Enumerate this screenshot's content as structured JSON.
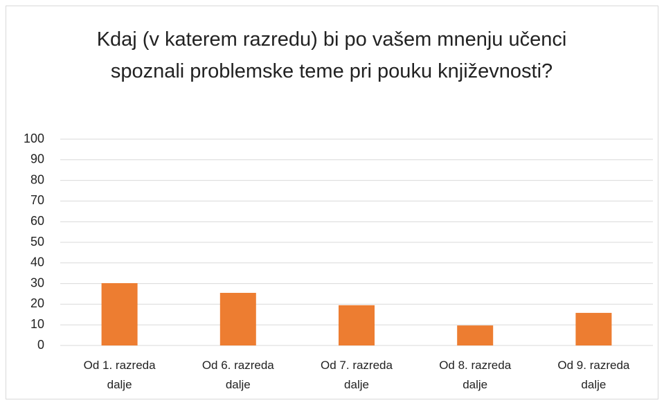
{
  "chart_data": {
    "type": "bar",
    "title": "Kdaj (v katerem razredu) bi po vašem mnenju učenci spoznali problemske teme pri pouku književnosti?",
    "categories": [
      "Od 1. razreda dalje",
      "Od 6. razreda dalje",
      "Od 7. razreda dalje",
      "Od 8. razreda dalje",
      "Od 9. razreda dalje"
    ],
    "values": [
      30.2,
      25.5,
      19.5,
      9.7,
      15.8
    ],
    "color": "#ed7d31",
    "ylim": [
      0,
      100
    ],
    "yticks": [
      0,
      10,
      20,
      30,
      40,
      50,
      60,
      70,
      80,
      90,
      100
    ],
    "grid": true
  }
}
